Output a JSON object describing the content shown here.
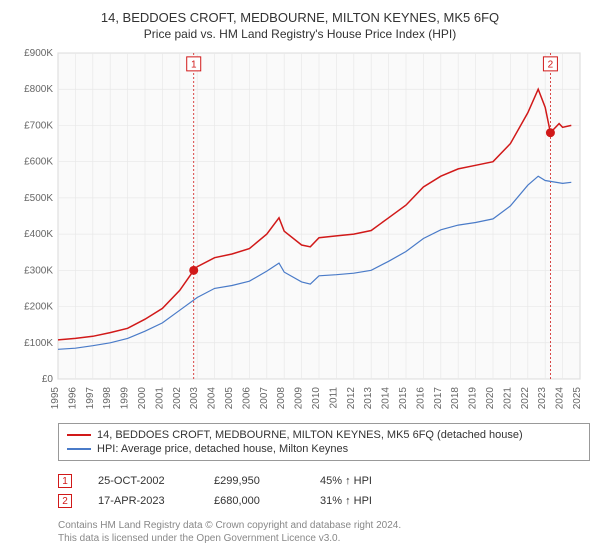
{
  "title_main": "14, BEDDOES CROFT, MEDBOURNE, MILTON KEYNES, MK5 6FQ",
  "title_sub": "Price paid vs. HM Land Registry's House Price Index (HPI)",
  "chart": {
    "type": "line",
    "background_color": "#ffffff",
    "plot_bg_color": "#fafafa",
    "grid_color": "#e8e8e8",
    "axis_color": "#888888",
    "tick_fontsize": 10,
    "tick_color": "#666666",
    "x": {
      "min": 1995,
      "max": 2025,
      "ticks": [
        1995,
        1996,
        1997,
        1998,
        1999,
        2000,
        2001,
        2002,
        2003,
        2004,
        2005,
        2006,
        2007,
        2008,
        2009,
        2010,
        2011,
        2012,
        2013,
        2014,
        2015,
        2016,
        2017,
        2018,
        2019,
        2020,
        2021,
        2022,
        2023,
        2024,
        2025
      ]
    },
    "y": {
      "min": 0,
      "max": 900000,
      "ticks": [
        0,
        100000,
        200000,
        300000,
        400000,
        500000,
        600000,
        700000,
        800000,
        900000
      ],
      "tick_labels": [
        "£0",
        "£100K",
        "£200K",
        "£300K",
        "£400K",
        "£500K",
        "£600K",
        "£700K",
        "£800K",
        "£900K"
      ]
    },
    "series": [
      {
        "name": "property",
        "legend": "14, BEDDOES CROFT, MEDBOURNE, MILTON KEYNES, MK5 6FQ (detached house)",
        "color": "#d11919",
        "width": 1.5,
        "points": [
          [
            1995,
            108000
          ],
          [
            1996,
            112000
          ],
          [
            1997,
            118000
          ],
          [
            1998,
            128000
          ],
          [
            1999,
            140000
          ],
          [
            2000,
            165000
          ],
          [
            2001,
            195000
          ],
          [
            2002,
            245000
          ],
          [
            2002.8,
            299950
          ],
          [
            2003,
            310000
          ],
          [
            2004,
            335000
          ],
          [
            2005,
            345000
          ],
          [
            2006,
            360000
          ],
          [
            2007,
            400000
          ],
          [
            2007.7,
            445000
          ],
          [
            2008,
            408000
          ],
          [
            2009,
            370000
          ],
          [
            2009.5,
            365000
          ],
          [
            2010,
            390000
          ],
          [
            2011,
            395000
          ],
          [
            2012,
            400000
          ],
          [
            2013,
            410000
          ],
          [
            2014,
            445000
          ],
          [
            2015,
            480000
          ],
          [
            2016,
            530000
          ],
          [
            2017,
            560000
          ],
          [
            2018,
            580000
          ],
          [
            2019,
            590000
          ],
          [
            2020,
            600000
          ],
          [
            2021,
            650000
          ],
          [
            2022,
            735000
          ],
          [
            2022.6,
            800000
          ],
          [
            2023,
            750000
          ],
          [
            2023.3,
            680000
          ],
          [
            2023.8,
            705000
          ],
          [
            2024,
            695000
          ],
          [
            2024.5,
            700000
          ]
        ]
      },
      {
        "name": "hpi",
        "legend": "HPI: Average price, detached house, Milton Keynes",
        "color": "#4a7bc8",
        "width": 1.2,
        "points": [
          [
            1995,
            82000
          ],
          [
            1996,
            85000
          ],
          [
            1997,
            92000
          ],
          [
            1998,
            100000
          ],
          [
            1999,
            112000
          ],
          [
            2000,
            132000
          ],
          [
            2001,
            155000
          ],
          [
            2002,
            190000
          ],
          [
            2003,
            225000
          ],
          [
            2004,
            250000
          ],
          [
            2005,
            258000
          ],
          [
            2006,
            270000
          ],
          [
            2007,
            298000
          ],
          [
            2007.7,
            320000
          ],
          [
            2008,
            295000
          ],
          [
            2009,
            268000
          ],
          [
            2009.5,
            262000
          ],
          [
            2010,
            285000
          ],
          [
            2011,
            288000
          ],
          [
            2012,
            292000
          ],
          [
            2013,
            300000
          ],
          [
            2014,
            325000
          ],
          [
            2015,
            352000
          ],
          [
            2016,
            388000
          ],
          [
            2017,
            412000
          ],
          [
            2018,
            425000
          ],
          [
            2019,
            432000
          ],
          [
            2020,
            442000
          ],
          [
            2021,
            478000
          ],
          [
            2022,
            535000
          ],
          [
            2022.6,
            560000
          ],
          [
            2023,
            548000
          ],
          [
            2024,
            540000
          ],
          [
            2024.5,
            543000
          ]
        ]
      }
    ],
    "vlines": [
      {
        "x": 2002.8,
        "color": "#d11919",
        "dash": "2,2"
      },
      {
        "x": 2023.3,
        "color": "#d11919",
        "dash": "2,2"
      }
    ],
    "markers": [
      {
        "num": "1",
        "x": 2002.8,
        "y": 299950,
        "badge_y": 870000,
        "color": "#d11919"
      },
      {
        "num": "2",
        "x": 2023.3,
        "y": 680000,
        "badge_y": 870000,
        "color": "#d11919"
      }
    ]
  },
  "legend": {
    "border_color": "#999999",
    "rows": [
      {
        "color": "#d11919",
        "label": "14, BEDDOES CROFT, MEDBOURNE, MILTON KEYNES, MK5 6FQ (detached house)"
      },
      {
        "color": "#4a7bc8",
        "label": "HPI: Average price, detached house, Milton Keynes"
      }
    ]
  },
  "transactions": [
    {
      "num": "1",
      "color": "#d11919",
      "date": "25-OCT-2002",
      "price": "£299,950",
      "diff": "45% ↑ HPI"
    },
    {
      "num": "2",
      "color": "#d11919",
      "date": "17-APR-2023",
      "price": "£680,000",
      "diff": "31% ↑ HPI"
    }
  ],
  "footer_line1": "Contains HM Land Registry data © Crown copyright and database right 2024.",
  "footer_line2": "This data is licensed under the Open Government Licence v3.0."
}
